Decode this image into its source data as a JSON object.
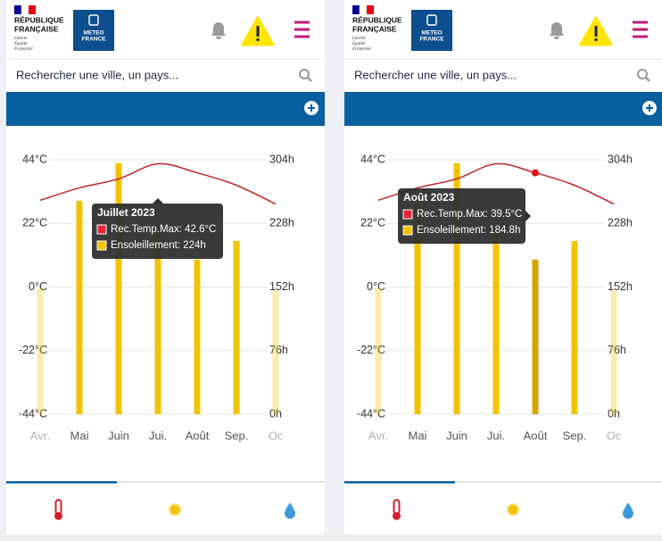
{
  "header": {
    "republic_line1": "RÉPUBLIQUE",
    "republic_line2": "FRANÇAISE",
    "motto": [
      "Liberté",
      "Égalité",
      "Fraternité"
    ],
    "brand_line1": "METEO",
    "brand_line2": "FRANCE"
  },
  "search": {
    "placeholder": "Rechercher une ville, un pays..."
  },
  "chart_data": [
    {
      "type": "combo",
      "categories": [
        "Avr.",
        "Mai",
        "Juin",
        "Jui.",
        "Août",
        "Sep.",
        "Oc"
      ],
      "series": [
        {
          "type": "line",
          "color": "#c0282d",
          "values": [
            30,
            34.3,
            37.4,
            42.6,
            39.5,
            35.2,
            28.7
          ]
        },
        {
          "type": "bar",
          "color": "#f2c300",
          "axis": "y2",
          "values": [
            151,
            255,
            300,
            224,
            184.8,
            207,
            148
          ]
        }
      ],
      "ylim": [
        -44,
        44
      ],
      "yticks": [
        {
          "value": 44,
          "label": "44°C"
        },
        {
          "value": 22,
          "label": "22°C"
        },
        {
          "value": 0,
          "label": "0°C"
        },
        {
          "value": -22,
          "label": "-22°C"
        },
        {
          "value": -44,
          "label": "-44°C"
        }
      ],
      "y2lim": [
        0,
        304
      ],
      "y2ticks": [
        {
          "value": 304,
          "label": "304h"
        },
        {
          "value": 228,
          "label": "228h"
        },
        {
          "value": 152,
          "label": "152h"
        },
        {
          "value": 76,
          "label": "76h"
        },
        {
          "value": 0,
          "label": "0h"
        }
      ],
      "grid": true,
      "selected": 3
    },
    {
      "type": "combo",
      "categories": [
        "Avr.",
        "Mai",
        "Juin",
        "Jui.",
        "Août",
        "Sep.",
        "Oc"
      ],
      "series": [
        {
          "type": "line",
          "color": "#c0282d",
          "values": [
            30,
            34.3,
            37.4,
            42.6,
            39.5,
            35.2,
            28.7
          ]
        },
        {
          "type": "bar",
          "color": "#f2c300",
          "axis": "y2",
          "values": [
            151,
            255,
            300,
            224,
            184.8,
            207,
            148
          ]
        }
      ],
      "ylim": [
        -44,
        44
      ],
      "yticks": [
        {
          "value": 44,
          "label": "44°C"
        },
        {
          "value": 22,
          "label": "22°C"
        },
        {
          "value": 0,
          "label": "0°C"
        },
        {
          "value": -22,
          "label": "-22°C"
        },
        {
          "value": -44,
          "label": "-44°C"
        }
      ],
      "y2lim": [
        0,
        304
      ],
      "y2ticks": [
        {
          "value": 304,
          "label": "304h"
        },
        {
          "value": 228,
          "label": "228h"
        },
        {
          "value": 152,
          "label": "152h"
        },
        {
          "value": 76,
          "label": "76h"
        },
        {
          "value": 0,
          "label": "0h"
        }
      ],
      "grid": true,
      "selected": 4
    }
  ],
  "tooltips": [
    {
      "title": "Juillet 2023",
      "items": [
        "Rec.Temp.Max: 42.6°C",
        "Ensoleillement: 224h"
      ]
    },
    {
      "title": "Août 2023",
      "items": [
        "Rec.Temp.Max: 39.5°C",
        "Ensoleillement: 184.8h"
      ]
    }
  ]
}
